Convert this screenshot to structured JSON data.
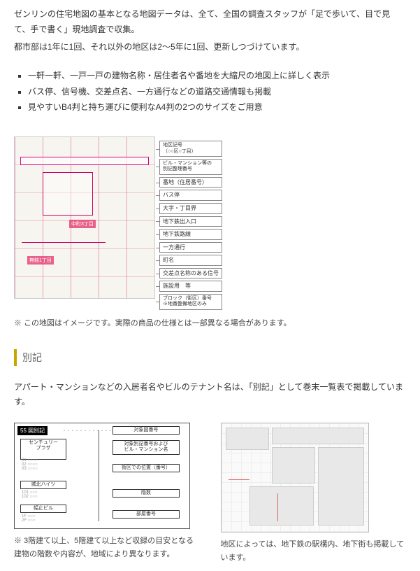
{
  "intro": {
    "p1": "ゼンリンの住宅地図の基本となる地図データは、全て、全国の調査スタッフが「足で歩いて、目で見て、手で書く」現地調査で収集。",
    "p2": "都市部は1年に1回、それ以外の地区は2〜5年に1回、更新しつづけています。"
  },
  "features": [
    "一軒一軒、一戸一戸の建物名称・居住者名や番地を大縮尺の地図上に詳しく表示",
    "バス停、信号機、交差点名、一方通行などの道路交通情報も掲載",
    "見やすいB4判と持ち運びに便利なA4判の2つのサイズをご用意"
  ],
  "map": {
    "label1": "中町3丁目",
    "label2": "無銘1丁目",
    "legend": [
      "地区記号\n（○○区○丁目）",
      "ビル・マンション等の\n別記整理番号",
      "番地（住居番号）",
      "バス停",
      "大字・丁目界",
      "地下鉄出入口",
      "地下鉄路線",
      "一方通行",
      "町名",
      "交差点名称のある信号",
      "施設用　等",
      "ブロック（街区）番号\n※地番整備地区のみ"
    ],
    "note": "※ この地図はイメージです。実際の商品の仕様とは一部異なる場合があります。"
  },
  "section2": {
    "title": "別記",
    "desc": "アパート・マンションなどの入居者名やビルのテナント名は、「別記」として巻末一覧表で掲載しています。",
    "appendix": {
      "header": "55 図別記",
      "left_building_top": "センチュリー\nプラザ",
      "left_building_bottom": "城北ハイツ",
      "left_building_mid": "幅止ビル",
      "boxes": [
        "対象図番号",
        "対象別記番号および\nビル・マンション名",
        "街区での位置（番号）",
        "階数",
        "部屋番号"
      ]
    },
    "caption_left": "※ 3階建て以上、5階建て以上など収録の目安となる建物の階数や内容が、地域により異なります。",
    "caption_right": "地区によっては、地下鉄の駅構内、地下街も掲載しています。"
  }
}
